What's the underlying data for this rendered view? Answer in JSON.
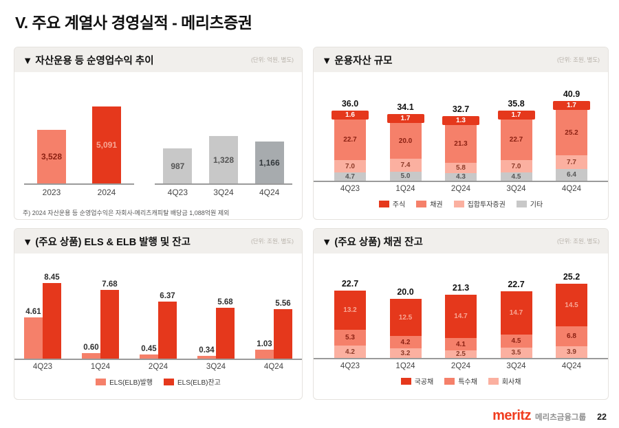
{
  "page": {
    "title": "V. 주요 계열사 경영실적 - 메리츠증권",
    "footer": {
      "logo": "meritz",
      "group_name": "메리츠금융그룹",
      "page_number": "22"
    },
    "colors": {
      "red": "#E5381C",
      "salmon": "#F5806A",
      "pink": "#FBB0A0",
      "gray": "#C8C8C8",
      "dark_gray": "#A7ABAE"
    }
  },
  "chart_data": [
    {
      "id": "net-operating-revenue",
      "type": "bar",
      "title": "▼ 자산운용 등 순영업수익 추이",
      "unit": "(단위: 억원, 별도)",
      "groups": [
        {
          "categories": [
            "2023",
            "2024"
          ],
          "values": [
            3528,
            5091
          ],
          "labels": [
            "3,528",
            "5,091"
          ],
          "colors": [
            "salmon",
            "red"
          ]
        },
        {
          "categories": [
            "4Q23",
            "3Q24",
            "4Q24"
          ],
          "values": [
            987,
            1328,
            1166
          ],
          "labels": [
            "987",
            "1,328",
            "1,166"
          ],
          "colors": [
            "gray",
            "gray",
            "dark_gray"
          ]
        }
      ],
      "footnote": "주) 2024 자산운용 등 순영업수익은 자회사-메리츠캐피탈 배당금 1,088억원 제외"
    },
    {
      "id": "aum",
      "type": "stacked-bar",
      "title": "▼ 운용자산 규모",
      "unit": "(단위: 조원, 별도)",
      "categories": [
        "4Q23",
        "1Q24",
        "2Q24",
        "3Q24",
        "4Q24"
      ],
      "totals": [
        "36.0",
        "34.1",
        "32.7",
        "35.8",
        "40.9"
      ],
      "series": [
        {
          "name": "주식",
          "color": "red",
          "values": [
            1.6,
            1.7,
            1.3,
            1.7,
            1.7
          ],
          "labels": [
            "1.6",
            "1.7",
            "1.3",
            "1.7",
            "1.7"
          ]
        },
        {
          "name": "채권",
          "color": "salmon",
          "values": [
            22.7,
            20.0,
            21.3,
            22.7,
            25.2
          ],
          "labels": [
            "22.7",
            "20.0",
            "21.3",
            "22.7",
            "25.2"
          ]
        },
        {
          "name": "집합투자증권",
          "color": "pink",
          "values": [
            7.0,
            7.4,
            5.8,
            7.0,
            7.7
          ],
          "labels": [
            "7.0",
            "7.4",
            "5.8",
            "7.0",
            "7.7"
          ]
        },
        {
          "name": "기타",
          "color": "gray",
          "values": [
            4.7,
            5.0,
            4.3,
            4.5,
            6.4
          ],
          "labels": [
            "4.7",
            "5.0",
            "4.3",
            "4.5",
            "6.4"
          ]
        }
      ],
      "legend": [
        "주식",
        "채권",
        "집합투자증권",
        "기타"
      ]
    },
    {
      "id": "els-elb",
      "type": "bar",
      "title": "▼ (주요 상품) ELS & ELB 발행 및 잔고",
      "unit": "(단위: 조원, 별도)",
      "categories": [
        "4Q23",
        "1Q24",
        "2Q24",
        "3Q24",
        "4Q24"
      ],
      "series": [
        {
          "name": "ELS(ELB)발행",
          "color": "salmon",
          "values": [
            4.61,
            0.6,
            0.45,
            0.34,
            1.03
          ],
          "labels": [
            "4.61",
            "0.60",
            "0.45",
            "0.34",
            "1.03"
          ]
        },
        {
          "name": "ELS(ELB)잔고",
          "color": "red",
          "values": [
            8.45,
            7.68,
            6.37,
            5.68,
            5.56
          ],
          "labels": [
            "8.45",
            "7.68",
            "6.37",
            "5.68",
            "5.56"
          ]
        }
      ],
      "legend": [
        "ELS(ELB)발행",
        "ELS(ELB)잔고"
      ]
    },
    {
      "id": "bond-balance",
      "type": "stacked-bar",
      "title": "▼ (주요 상품) 채권 잔고",
      "unit": "(단위: 조원, 별도)",
      "categories": [
        "4Q23",
        "1Q24",
        "2Q24",
        "3Q24",
        "4Q24"
      ],
      "totals": [
        "22.7",
        "20.0",
        "21.3",
        "22.7",
        "25.2"
      ],
      "series": [
        {
          "name": "국공채",
          "color": "red",
          "values": [
            13.2,
            12.5,
            14.7,
            14.7,
            14.5
          ],
          "labels": [
            "13.2",
            "12.5",
            "14.7",
            "14.7",
            "14.5"
          ]
        },
        {
          "name": "특수채",
          "color": "salmon",
          "values": [
            5.3,
            4.2,
            4.1,
            4.5,
            6.8
          ],
          "labels": [
            "5.3",
            "4.2",
            "4.1",
            "4.5",
            "6.8"
          ]
        },
        {
          "name": "회사채",
          "color": "pink",
          "values": [
            4.2,
            3.2,
            2.5,
            3.5,
            3.9
          ],
          "labels": [
            "4.2",
            "3.2",
            "2.5",
            "3.5",
            "3.9"
          ]
        }
      ],
      "legend": [
        "국공채",
        "특수채",
        "회사채"
      ]
    }
  ]
}
